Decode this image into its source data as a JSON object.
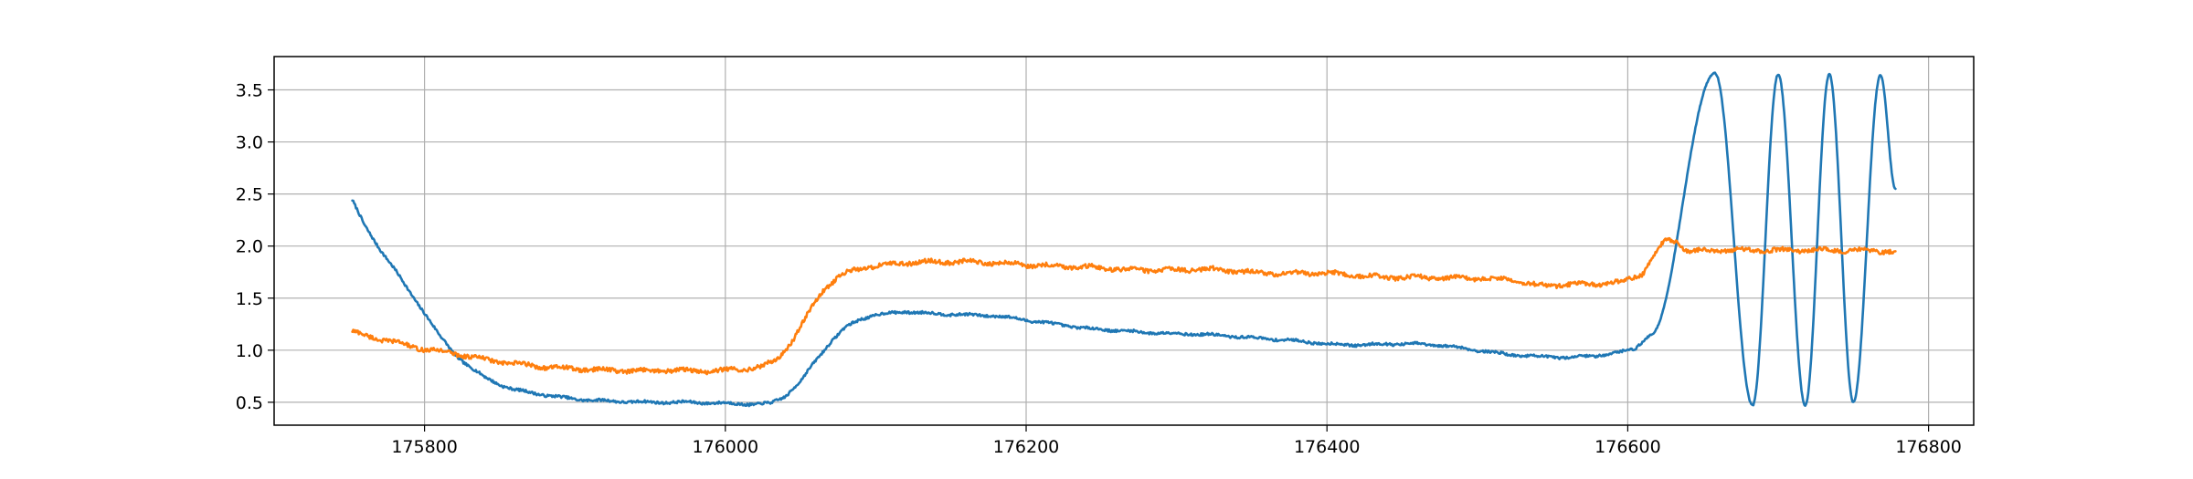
{
  "chart_data": {
    "type": "line",
    "title": "",
    "xlabel": "",
    "ylabel": "",
    "xlim": [
      175700,
      176830
    ],
    "ylim": [
      0.28,
      3.82
    ],
    "grid": true,
    "x_ticks": [
      175800,
      176000,
      176200,
      176400,
      176600,
      176800
    ],
    "x_tick_labels": [
      "175800",
      "176000",
      "176200",
      "176400",
      "176600",
      "176800"
    ],
    "y_ticks": [
      0.5,
      1.0,
      1.5,
      2.0,
      2.5,
      3.0,
      3.5
    ],
    "y_tick_labels": [
      "0.5",
      "1.0",
      "1.5",
      "2.0",
      "2.5",
      "3.0",
      "3.5"
    ],
    "series": [
      {
        "color": "#1f77b4",
        "noise": 0.012,
        "points": [
          [
            175752,
            2.44
          ],
          [
            175760,
            2.2
          ],
          [
            175770,
            1.98
          ],
          [
            175780,
            1.78
          ],
          [
            175790,
            1.56
          ],
          [
            175800,
            1.36
          ],
          [
            175810,
            1.14
          ],
          [
            175820,
            0.96
          ],
          [
            175830,
            0.84
          ],
          [
            175840,
            0.74
          ],
          [
            175850,
            0.67
          ],
          [
            175860,
            0.62
          ],
          [
            175880,
            0.57
          ],
          [
            175900,
            0.53
          ],
          [
            175925,
            0.51
          ],
          [
            175950,
            0.5
          ],
          [
            175975,
            0.5
          ],
          [
            176000,
            0.49
          ],
          [
            176020,
            0.48
          ],
          [
            176030,
            0.49
          ],
          [
            176040,
            0.56
          ],
          [
            176050,
            0.7
          ],
          [
            176060,
            0.9
          ],
          [
            176070,
            1.08
          ],
          [
            176080,
            1.22
          ],
          [
            176090,
            1.3
          ],
          [
            176100,
            1.34
          ],
          [
            176120,
            1.37
          ],
          [
            176140,
            1.35
          ],
          [
            176160,
            1.34
          ],
          [
            176180,
            1.33
          ],
          [
            176200,
            1.29
          ],
          [
            176220,
            1.25
          ],
          [
            176240,
            1.21
          ],
          [
            176260,
            1.19
          ],
          [
            176280,
            1.17
          ],
          [
            176300,
            1.16
          ],
          [
            176320,
            1.15
          ],
          [
            176340,
            1.13
          ],
          [
            176360,
            1.11
          ],
          [
            176380,
            1.09
          ],
          [
            176400,
            1.06
          ],
          [
            176420,
            1.05
          ],
          [
            176440,
            1.06
          ],
          [
            176460,
            1.06
          ],
          [
            176480,
            1.04
          ],
          [
            176500,
            1.0
          ],
          [
            176520,
            0.96
          ],
          [
            176540,
            0.94
          ],
          [
            176560,
            0.93
          ],
          [
            176580,
            0.95
          ],
          [
            176595,
            0.98
          ],
          [
            176605,
            1.02
          ],
          [
            176615,
            1.15
          ]
        ],
        "oscillation": {
          "start_x": 176615,
          "end_x": 176778,
          "start_y": 1.15,
          "peaks": [
            [
              176658,
              3.66
            ],
            [
              176700,
              3.65
            ],
            [
              176734,
              3.65
            ],
            [
              176768,
              3.64
            ]
          ],
          "troughs": [
            [
              176683,
              0.47
            ],
            [
              176718,
              0.47
            ],
            [
              176750,
              0.5
            ]
          ],
          "end_y": 2.55
        }
      },
      {
        "color": "#ff7f0e",
        "noise": 0.02,
        "points": [
          [
            175752,
            1.18
          ],
          [
            175760,
            1.14
          ],
          [
            175770,
            1.11
          ],
          [
            175780,
            1.08
          ],
          [
            175790,
            1.04
          ],
          [
            175800,
            1.01
          ],
          [
            175820,
            0.97
          ],
          [
            175840,
            0.91
          ],
          [
            175860,
            0.87
          ],
          [
            175880,
            0.84
          ],
          [
            175900,
            0.82
          ],
          [
            175920,
            0.81
          ],
          [
            175940,
            0.8
          ],
          [
            175960,
            0.81
          ],
          [
            175980,
            0.8
          ],
          [
            175995,
            0.8
          ],
          [
            176010,
            0.82
          ],
          [
            176025,
            0.84
          ],
          [
            176035,
            0.92
          ],
          [
            176045,
            1.1
          ],
          [
            176055,
            1.35
          ],
          [
            176065,
            1.58
          ],
          [
            176075,
            1.7
          ],
          [
            176085,
            1.77
          ],
          [
            176100,
            1.81
          ],
          [
            176120,
            1.84
          ],
          [
            176140,
            1.85
          ],
          [
            176160,
            1.85
          ],
          [
            176180,
            1.84
          ],
          [
            176200,
            1.82
          ],
          [
            176220,
            1.81
          ],
          [
            176240,
            1.8
          ],
          [
            176260,
            1.78
          ],
          [
            176280,
            1.77
          ],
          [
            176300,
            1.77
          ],
          [
            176320,
            1.78
          ],
          [
            176340,
            1.76
          ],
          [
            176360,
            1.74
          ],
          [
            176380,
            1.74
          ],
          [
            176400,
            1.74
          ],
          [
            176420,
            1.72
          ],
          [
            176440,
            1.7
          ],
          [
            176460,
            1.7
          ],
          [
            176480,
            1.69
          ],
          [
            176500,
            1.69
          ],
          [
            176520,
            1.68
          ],
          [
            176540,
            1.62
          ],
          [
            176560,
            1.63
          ],
          [
            176580,
            1.64
          ],
          [
            176595,
            1.65
          ],
          [
            176610,
            1.74
          ],
          [
            176625,
            2.06
          ],
          [
            176632,
            2.05
          ],
          [
            176640,
            1.95
          ],
          [
            176660,
            1.96
          ],
          [
            176700,
            1.96
          ],
          [
            176740,
            1.96
          ],
          [
            176778,
            1.95
          ]
        ]
      }
    ]
  }
}
